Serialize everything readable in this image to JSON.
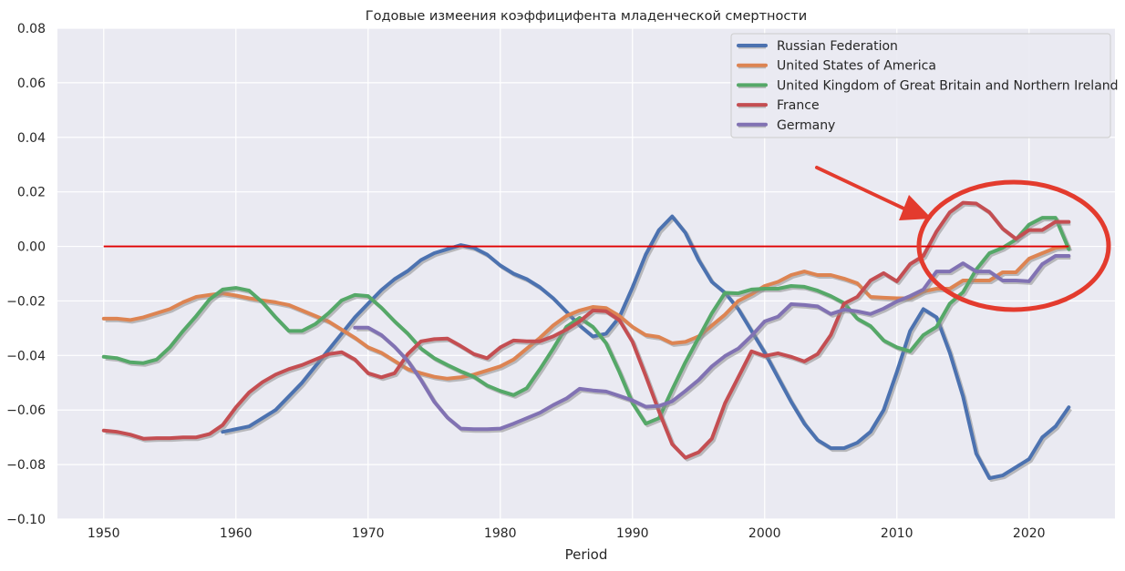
{
  "chart_data": {
    "type": "line",
    "title": "Годовые измеения коэффицифента младенческой смертности",
    "xlabel": "Period",
    "ylabel": "",
    "xlim": [
      1946.5,
      2026.5
    ],
    "ylim": [
      -0.1,
      0.08
    ],
    "xticks": [
      1950,
      1960,
      1970,
      1980,
      1990,
      2000,
      2010,
      2020
    ],
    "yticks": [
      -0.1,
      -0.08,
      -0.06,
      -0.04,
      -0.02,
      0.0,
      0.02,
      0.04,
      0.06,
      0.08
    ],
    "ytick_labels": [
      "−0.10",
      "−0.08",
      "−0.06",
      "−0.04",
      "−0.02",
      "0.00",
      "0.02",
      "0.04",
      "0.06",
      "0.08"
    ],
    "grid": true,
    "legend_position": "top-right",
    "reference_line": {
      "y": 0.0,
      "x": [
        1950,
        2023
      ],
      "color": "#e00000"
    },
    "highlight": {
      "type": "ellipse-and-arrow",
      "color": "#e33b2e",
      "target_period": [
        2009,
        2023
      ]
    },
    "series": [
      {
        "name": "Russian Federation",
        "color": "#4c72b0",
        "x": [
          1959,
          1960,
          1961,
          1962,
          1963,
          1964,
          1965,
          1966,
          1967,
          1968,
          1969,
          1970,
          1971,
          1972,
          1973,
          1974,
          1975,
          1976,
          1977,
          1978,
          1979,
          1980,
          1981,
          1982,
          1983,
          1984,
          1985,
          1986,
          1987,
          1988,
          1989,
          1990,
          1991,
          1992,
          1993,
          1994,
          1995,
          1996,
          1997,
          1998,
          1999,
          2000,
          2001,
          2002,
          2003,
          2004,
          2005,
          2006,
          2007,
          2008,
          2009,
          2010,
          2011,
          2012,
          2013,
          2014,
          2015,
          2016,
          2017,
          2018,
          2019,
          2020,
          2021,
          2022,
          2023
        ],
        "y": [
          -0.068,
          -0.067,
          -0.066,
          -0.063,
          -0.06,
          -0.055,
          -0.05,
          -0.044,
          -0.038,
          -0.032,
          -0.026,
          -0.021,
          -0.016,
          -0.012,
          -0.009,
          -0.005,
          -0.0025,
          -0.001,
          0.0005,
          -0.0005,
          -0.003,
          -0.007,
          -0.01,
          -0.012,
          -0.015,
          -0.019,
          -0.024,
          -0.029,
          -0.033,
          -0.032,
          -0.026,
          -0.015,
          -0.003,
          0.006,
          0.011,
          0.005,
          -0.005,
          -0.013,
          -0.017,
          -0.023,
          -0.031,
          -0.039,
          -0.048,
          -0.057,
          -0.065,
          -0.071,
          -0.074,
          -0.074,
          -0.072,
          -0.068,
          -0.06,
          -0.046,
          -0.031,
          -0.023,
          -0.026,
          -0.039,
          -0.055,
          -0.076,
          -0.085,
          -0.084,
          -0.081,
          -0.078,
          -0.07,
          -0.066,
          -0.059
        ]
      },
      {
        "name": "United States of America",
        "color": "#dd8452",
        "x": [
          1950,
          1951,
          1952,
          1953,
          1954,
          1955,
          1956,
          1957,
          1958,
          1959,
          1960,
          1961,
          1962,
          1963,
          1964,
          1965,
          1966,
          1967,
          1968,
          1969,
          1970,
          1971,
          1972,
          1973,
          1974,
          1975,
          1976,
          1977,
          1978,
          1979,
          1980,
          1981,
          1982,
          1983,
          1984,
          1985,
          1986,
          1987,
          1988,
          1989,
          1990,
          1991,
          1992,
          1993,
          1994,
          1995,
          1996,
          1997,
          1998,
          1999,
          2000,
          2001,
          2002,
          2003,
          2004,
          2005,
          2006,
          2007,
          2008,
          2009,
          2010,
          2011,
          2012,
          2013,
          2014,
          2015,
          2016,
          2017,
          2018,
          2019,
          2020,
          2021,
          2022,
          2023
        ],
        "y": [
          -0.0265,
          -0.0265,
          -0.027,
          -0.026,
          -0.0245,
          -0.023,
          -0.0205,
          -0.0185,
          -0.0178,
          -0.0172,
          -0.018,
          -0.019,
          -0.0198,
          -0.0205,
          -0.0215,
          -0.0235,
          -0.0255,
          -0.0275,
          -0.0305,
          -0.0335,
          -0.037,
          -0.039,
          -0.042,
          -0.045,
          -0.0465,
          -0.0478,
          -0.0485,
          -0.048,
          -0.047,
          -0.0455,
          -0.044,
          -0.0415,
          -0.0375,
          -0.0335,
          -0.029,
          -0.0255,
          -0.0235,
          -0.0222,
          -0.0226,
          -0.0255,
          -0.0295,
          -0.0325,
          -0.0332,
          -0.0355,
          -0.035,
          -0.033,
          -0.029,
          -0.025,
          -0.02,
          -0.0175,
          -0.0145,
          -0.013,
          -0.0105,
          -0.0092,
          -0.0105,
          -0.0105,
          -0.0118,
          -0.0135,
          -0.0185,
          -0.0188,
          -0.019,
          -0.019,
          -0.0165,
          -0.0155,
          -0.0155,
          -0.0125,
          -0.0125,
          -0.0125,
          -0.0095,
          -0.0095,
          -0.0045,
          -0.0025,
          -0.0005,
          -0.0001
        ]
      },
      {
        "name": "United Kingdom of Great Britain and Northern Ireland",
        "color": "#55a868",
        "x": [
          1950,
          1951,
          1952,
          1953,
          1954,
          1955,
          1956,
          1957,
          1958,
          1959,
          1960,
          1961,
          1962,
          1963,
          1964,
          1965,
          1966,
          1967,
          1968,
          1969,
          1970,
          1971,
          1972,
          1973,
          1974,
          1975,
          1976,
          1977,
          1978,
          1979,
          1980,
          1981,
          1982,
          1983,
          1984,
          1985,
          1986,
          1987,
          1988,
          1989,
          1990,
          1991,
          1992,
          1993,
          1994,
          1995,
          1996,
          1997,
          1998,
          1999,
          2000,
          2001,
          2002,
          2003,
          2004,
          2005,
          2006,
          2007,
          2008,
          2009,
          2010,
          2011,
          2012,
          2013,
          2014,
          2015,
          2016,
          2017,
          2018,
          2019,
          2020,
          2021,
          2022,
          2023
        ],
        "y": [
          -0.0405,
          -0.041,
          -0.0425,
          -0.0428,
          -0.0415,
          -0.037,
          -0.031,
          -0.0255,
          -0.0195,
          -0.0158,
          -0.0152,
          -0.0162,
          -0.0205,
          -0.026,
          -0.031,
          -0.031,
          -0.0285,
          -0.0245,
          -0.0198,
          -0.0178,
          -0.0182,
          -0.0225,
          -0.0275,
          -0.032,
          -0.0375,
          -0.041,
          -0.0435,
          -0.0458,
          -0.0478,
          -0.051,
          -0.053,
          -0.0545,
          -0.052,
          -0.045,
          -0.0375,
          -0.0295,
          -0.0262,
          -0.0295,
          -0.0355,
          -0.046,
          -0.0575,
          -0.065,
          -0.063,
          -0.0525,
          -0.0425,
          -0.0335,
          -0.0245,
          -0.017,
          -0.0172,
          -0.0158,
          -0.0155,
          -0.0155,
          -0.0145,
          -0.0148,
          -0.0162,
          -0.0182,
          -0.0208,
          -0.0265,
          -0.0292,
          -0.0345,
          -0.037,
          -0.0385,
          -0.0325,
          -0.0295,
          -0.021,
          -0.0168,
          -0.0085,
          -0.0025,
          -0.0005,
          0.0025,
          0.008,
          0.0105,
          0.0105,
          -0.001
        ]
      },
      {
        "name": "France",
        "color": "#c44e52",
        "x": [
          1950,
          1951,
          1952,
          1953,
          1954,
          1955,
          1956,
          1957,
          1958,
          1959,
          1960,
          1961,
          1962,
          1963,
          1964,
          1965,
          1966,
          1967,
          1968,
          1969,
          1970,
          1971,
          1972,
          1973,
          1974,
          1975,
          1976,
          1977,
          1978,
          1979,
          1980,
          1981,
          1982,
          1983,
          1984,
          1985,
          1986,
          1987,
          1988,
          1989,
          1990,
          1991,
          1992,
          1993,
          1994,
          1995,
          1996,
          1997,
          1998,
          1999,
          2000,
          2001,
          2002,
          2003,
          2004,
          2005,
          2006,
          2007,
          2008,
          2009,
          2010,
          2011,
          2012,
          2013,
          2014,
          2015,
          2016,
          2017,
          2018,
          2019,
          2020,
          2021,
          2022,
          2023
        ],
        "y": [
          -0.0675,
          -0.068,
          -0.069,
          -0.0705,
          -0.0703,
          -0.0703,
          -0.07,
          -0.07,
          -0.0688,
          -0.0655,
          -0.059,
          -0.0535,
          -0.0498,
          -0.047,
          -0.045,
          -0.0435,
          -0.0415,
          -0.0395,
          -0.0388,
          -0.0415,
          -0.0465,
          -0.048,
          -0.0465,
          -0.0395,
          -0.0348,
          -0.034,
          -0.0338,
          -0.0365,
          -0.0395,
          -0.041,
          -0.037,
          -0.0345,
          -0.0348,
          -0.0348,
          -0.033,
          -0.0305,
          -0.0275,
          -0.0235,
          -0.0238,
          -0.027,
          -0.035,
          -0.0475,
          -0.0605,
          -0.0725,
          -0.0775,
          -0.0755,
          -0.0705,
          -0.0575,
          -0.048,
          -0.0385,
          -0.0402,
          -0.0392,
          -0.0405,
          -0.0422,
          -0.0395,
          -0.0325,
          -0.021,
          -0.0185,
          -0.0125,
          -0.0098,
          -0.0128,
          -0.0065,
          -0.0035,
          0.0055,
          0.0125,
          0.016,
          0.0157,
          0.0125,
          0.0065,
          0.0028,
          0.006,
          0.006,
          0.009,
          0.009
        ]
      },
      {
        "name": "Germany",
        "color": "#8172b3",
        "x": [
          1969,
          1970,
          1971,
          1972,
          1973,
          1974,
          1975,
          1976,
          1977,
          1978,
          1979,
          1980,
          1981,
          1982,
          1983,
          1984,
          1985,
          1986,
          1987,
          1988,
          1989,
          1990,
          1991,
          1992,
          1993,
          1994,
          1995,
          1996,
          1997,
          1998,
          1999,
          2000,
          2001,
          2002,
          2003,
          2004,
          2005,
          2006,
          2007,
          2008,
          2009,
          2010,
          2011,
          2012,
          2013,
          2014,
          2015,
          2016,
          2017,
          2018,
          2019,
          2020,
          2021,
          2022,
          2023
        ],
        "y": [
          -0.0298,
          -0.0298,
          -0.0325,
          -0.0368,
          -0.042,
          -0.049,
          -0.057,
          -0.0628,
          -0.0668,
          -0.067,
          -0.067,
          -0.0668,
          -0.065,
          -0.063,
          -0.061,
          -0.0582,
          -0.0558,
          -0.0522,
          -0.0528,
          -0.0532,
          -0.0548,
          -0.0565,
          -0.0588,
          -0.0585,
          -0.0568,
          -0.053,
          -0.049,
          -0.044,
          -0.0402,
          -0.0375,
          -0.0328,
          -0.0275,
          -0.0258,
          -0.0212,
          -0.0215,
          -0.022,
          -0.0248,
          -0.0232,
          -0.0238,
          -0.0248,
          -0.0228,
          -0.0202,
          -0.0182,
          -0.0158,
          -0.0092,
          -0.0092,
          -0.0062,
          -0.0092,
          -0.0092,
          -0.0125,
          -0.0125,
          -0.0128,
          -0.0065,
          -0.0035,
          -0.0035
        ]
      }
    ]
  }
}
